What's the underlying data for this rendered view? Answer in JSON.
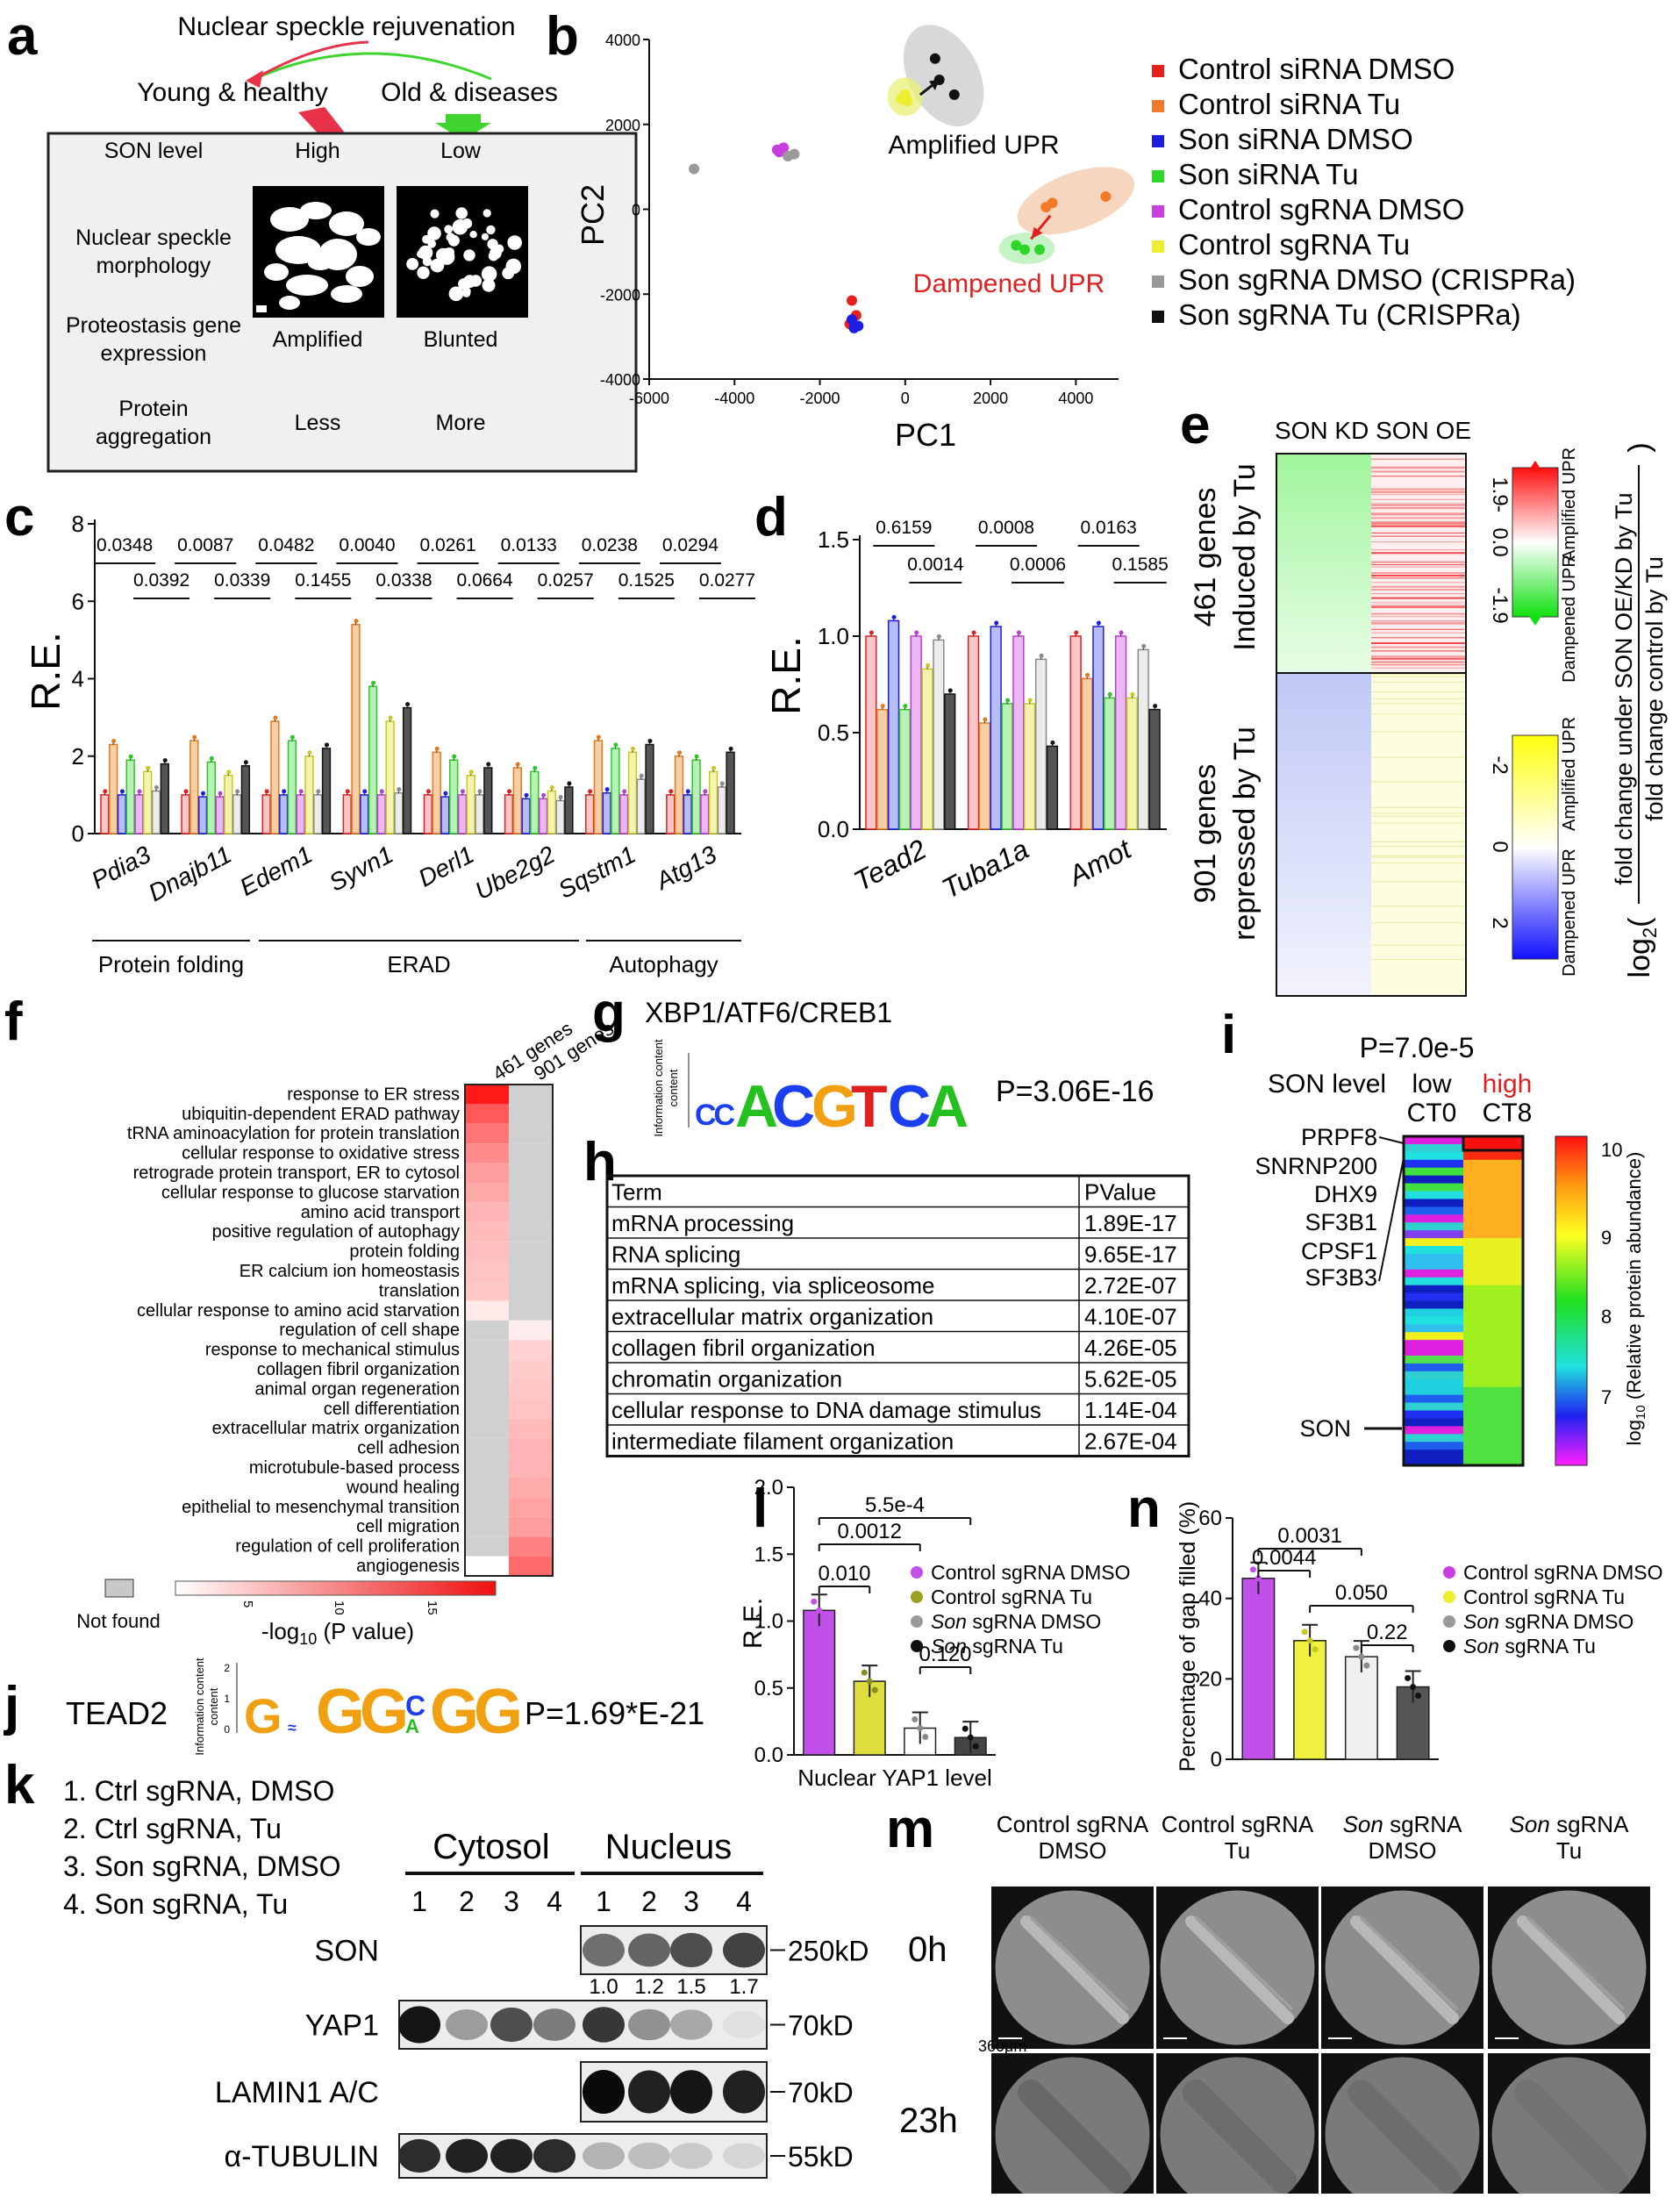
{
  "panel_letters": [
    "a",
    "b",
    "c",
    "d",
    "e",
    "f",
    "g",
    "h",
    "i",
    "j",
    "k",
    "l",
    "m",
    "n"
  ],
  "panel_a": {
    "title": "Nuclear speckle rejuvenation",
    "left_state": "Young & healthy",
    "right_state": "Old & diseases",
    "rows": [
      {
        "label": [
          "SON level"
        ],
        "left": "High",
        "right": "Low"
      },
      {
        "label": [
          "Nuclear speckle",
          "morphology"
        ],
        "left": "",
        "right": ""
      },
      {
        "label": [
          "Proteostasis gene",
          "expression"
        ],
        "left": "Amplified",
        "right": "Blunted"
      },
      {
        "label": [
          "Protein",
          "aggregation"
        ],
        "left": "Less",
        "right": "More"
      }
    ],
    "colors": {
      "arrow_left": "#e8324a",
      "arrow_right": "#3fd430"
    }
  },
  "panel_b": {
    "xlabel": "PC1",
    "ylabel": "PC2",
    "xticks": [
      "-6000",
      "-4000",
      "-2000",
      "0",
      "2000",
      "4000"
    ],
    "yticks": [
      "4000",
      "2000",
      "0",
      "-2000",
      "-4000"
    ],
    "annotation_up": "Amplified UPR",
    "annotation_down": "Dampened UPR",
    "legend": [
      {
        "name": "Control siRNA DMSO",
        "color": "#e8201c"
      },
      {
        "name": "Control siRNA Tu",
        "color": "#f07a2a"
      },
      {
        "name": "Son siRNA DMSO",
        "color": "#1b1ee0"
      },
      {
        "name": "Son siRNA Tu",
        "color": "#2fd62a"
      },
      {
        "name": "Control sgRNA DMSO",
        "color": "#c83ee0"
      },
      {
        "name": "Control sgRNA Tu",
        "color": "#eeee30"
      },
      {
        "name": "Son sgRNA DMSO (CRISPRa)",
        "color": "#9a9a9a"
      },
      {
        "name": "Son sgRNA Tu (CRISPRa)",
        "color": "#111111"
      }
    ]
  },
  "panel_c": {
    "ylabel": "R.E.",
    "yticks": [
      "0",
      "2",
      "4",
      "6",
      "8"
    ],
    "genes": [
      "Pdia3",
      "Dnajb11",
      "Edem1",
      "Syvn1",
      "Derl1",
      "Ube2g2",
      "Sqstm1",
      "Atg13"
    ],
    "pvalues_top": [
      "0.0348",
      "0.0087",
      "0.0482",
      "0.0040",
      "0.0261",
      "0.0133",
      "0.0238",
      "0.0294"
    ],
    "pvalues_bottom": [
      "0.0392",
      "0.0339",
      "0.1455",
      "0.0338",
      "0.0664",
      "0.0257",
      "0.1525",
      "0.0277"
    ],
    "groups": [
      "Protein folding",
      "ERAD",
      "Autophagy"
    ]
  },
  "panel_d": {
    "ylabel": "R.E.",
    "yticks": [
      "0.0",
      "0.5",
      "1.0",
      "1.5"
    ],
    "genes": [
      "Tead2",
      "Tuba1a",
      "Amot"
    ],
    "pvalues_top": [
      "0.6159",
      "0.0008",
      "0.0163"
    ],
    "pvalues_bottom": [
      "0.0014",
      "0.0006",
      "0.1585"
    ]
  },
  "panel_e": {
    "col_labels": "SON KD SON OE",
    "row_top": [
      "461 genes",
      "Induced by Tu"
    ],
    "row_bottom": [
      "901 genes",
      "repressed by Tu"
    ],
    "scale1_ticks": [
      "1.9",
      "-",
      "0.0",
      "-1.9"
    ],
    "scale2_ticks": [
      "-2",
      "0",
      "2"
    ],
    "scale_up": "Amplified UPR",
    "scale_down": "Dampened UPR",
    "axis_label": "log2(fold change under SON OE/KD by Tu / fold change control by Tu)",
    "axis_num": "fold change under SON OE/KD by Tu",
    "axis_den": "fold change control by Tu"
  },
  "panel_f": {
    "columns": [
      "461 genes",
      "901 genes"
    ],
    "terms": [
      {
        "term": "response to ER stress",
        "a": 1.0,
        "b": 0.0
      },
      {
        "term": "ubiquitin-dependent ERAD pathway",
        "a": 0.72,
        "b": 0.0
      },
      {
        "term": "tRNA aminoacylation for protein translation",
        "a": 0.6,
        "b": 0.0
      },
      {
        "term": "cellular response to oxidative stress",
        "a": 0.5,
        "b": 0.0
      },
      {
        "term": "retrograde protein transport, ER to cytosol",
        "a": 0.42,
        "b": 0.0
      },
      {
        "term": "cellular response to glucose starvation",
        "a": 0.38,
        "b": 0.0
      },
      {
        "term": "amino acid transport",
        "a": 0.32,
        "b": 0.0
      },
      {
        "term": "positive regulation of autophagy",
        "a": 0.3,
        "b": 0.0
      },
      {
        "term": "protein folding",
        "a": 0.28,
        "b": 0.0
      },
      {
        "term": "ER calcium ion homeostasis",
        "a": 0.26,
        "b": 0.0
      },
      {
        "term": "translation",
        "a": 0.24,
        "b": 0.0
      },
      {
        "term": "cellular response to amino acid starvation",
        "a": 0.1,
        "b": 0.0
      },
      {
        "term": "regulation of cell shape",
        "a": 0.0,
        "b": 0.08
      },
      {
        "term": "response to mechanical stimulus",
        "a": 0.0,
        "b": 0.2
      },
      {
        "term": "collagen fibril organization",
        "a": 0.0,
        "b": 0.22
      },
      {
        "term": "animal organ regeneration",
        "a": 0.0,
        "b": 0.24
      },
      {
        "term": "cell differentiation",
        "a": 0.0,
        "b": 0.26
      },
      {
        "term": "extracellular matrix organization",
        "a": 0.0,
        "b": 0.3
      },
      {
        "term": "cell adhesion",
        "a": 0.0,
        "b": 0.32
      },
      {
        "term": "microtubule-based process",
        "a": 0.0,
        "b": 0.32
      },
      {
        "term": "wound healing",
        "a": 0.0,
        "b": 0.36
      },
      {
        "term": "epithelial to mesenchymal transition",
        "a": 0.0,
        "b": 0.4
      },
      {
        "term": "cell migration",
        "a": 0.0,
        "b": 0.42
      },
      {
        "term": "regulation of cell proliferation",
        "a": 0.0,
        "b": 0.55
      },
      {
        "term": "angiogenesis",
        "a": -1,
        "b": 0.65
      }
    ],
    "not_found": "Not found",
    "scale_ticks": [
      "5",
      "10",
      "15"
    ],
    "scale_label": "-log10 (P value)"
  },
  "panel_g": {
    "title": "XBP1/ATF6/CREB1",
    "motif": "CCACGTCA",
    "ylabel": "Information content",
    "pvalue": "P=3.06E-16"
  },
  "panel_h": {
    "header": [
      "Term",
      "PValue"
    ],
    "rows": [
      [
        "mRNA processing",
        "1.89E-17"
      ],
      [
        "RNA splicing",
        "9.65E-17"
      ],
      [
        "mRNA splicing, via spliceosome",
        "2.72E-07"
      ],
      [
        "extracellular matrix organization",
        "4.10E-07"
      ],
      [
        "collagen fibril organization",
        "4.26E-05"
      ],
      [
        "chromatin organization",
        "5.62E-05"
      ],
      [
        "cellular response to DNA damage stimulus",
        "1.14E-04"
      ],
      [
        "intermediate filament organization",
        "2.67E-04"
      ]
    ]
  },
  "panel_i": {
    "pvalue": "P=7.0e-5",
    "son_level": "SON level",
    "low": "low",
    "high": "high",
    "ct0": "CT0",
    "ct8": "CT8",
    "proteins": [
      "PRPF8",
      "SNRNP200",
      "DHX9",
      "SF3B1",
      "CPSF1",
      "SF3B3"
    ],
    "son": "SON",
    "scale_ticks": [
      "10",
      "9",
      "8",
      "7"
    ],
    "scale_label": "log10 (Relative protein abundance)"
  },
  "panel_j": {
    "name": "TEAD2",
    "motif": "GGGCGG",
    "ylabel": "Information content",
    "pvalue": "P=1.69*E-21"
  },
  "panel_k": {
    "conditions": [
      "1. Ctrl sgRNA, DMSO",
      "2. Ctrl sgRNA, Tu",
      "3. Son sgRNA, DMSO",
      "4. Son sgRNA, Tu"
    ],
    "cytosol": "Cytosol",
    "nucleus": "Nucleus",
    "lanes": [
      "1",
      "2",
      "3",
      "4"
    ],
    "rows": [
      {
        "label": "SON",
        "kd": "250kD"
      },
      {
        "label": "YAP1",
        "kd": "70kD"
      },
      {
        "label": "LAMIN1 A/C",
        "kd": "70kD"
      },
      {
        "label": "α-TUBULIN",
        "kd": "55kD"
      }
    ],
    "son_quant": [
      "1.0",
      "1.2",
      "1.5",
      "1.7"
    ]
  },
  "panel_l": {
    "ylabel": "R.E.",
    "xlabel": "Nuclear YAP1 level",
    "yticks": [
      "0.0",
      "0.5",
      "1.0",
      "1.5",
      "2.0"
    ],
    "pvalues": [
      "5.5e-4",
      "0.0012",
      "0.010",
      "0.120"
    ],
    "legend": [
      {
        "name": "Control sgRNA DMSO",
        "color": "#c050e8"
      },
      {
        "name": "Control sgRNA Tu",
        "color": "#9aa020"
      },
      {
        "name": "Son sgRNA DMSO",
        "color": "#9a9a9a"
      },
      {
        "name": "Son sgRNA Tu",
        "color": "#111111"
      }
    ]
  },
  "panel_m": {
    "columns": [
      [
        "Control sgRNA",
        "DMSO"
      ],
      [
        "Control sgRNA",
        "Tu"
      ],
      [
        "Son sgRNA",
        "DMSO"
      ],
      [
        "Son sgRNA",
        "Tu"
      ]
    ],
    "rows": [
      "0h",
      "23h"
    ],
    "scale": "360μm"
  },
  "panel_n": {
    "ylabel": "Percentage of gap filled (%)",
    "yticks": [
      "0",
      "20",
      "40",
      "60"
    ],
    "pvalues": [
      "0.0031",
      "0.0044",
      "0.050",
      "0.22"
    ],
    "legend": [
      {
        "name": "Control sgRNA DMSO",
        "color": "#c83ee0"
      },
      {
        "name": "Control sgRNA Tu",
        "color": "#eeee30"
      },
      {
        "name": "Son sgRNA DMSO",
        "color": "#9a9a9a"
      },
      {
        "name": "Son sgRNA Tu",
        "color": "#111111"
      }
    ]
  },
  "chart_data": [
    {
      "type": "scatter",
      "xlabel": "PC1",
      "ylabel": "PC2",
      "xlim": [
        -6000,
        5000
      ],
      "ylim": [
        -4000,
        4000
      ],
      "series": [
        {
          "name": "Control siRNA DMSO",
          "points": [
            [
              -1250,
              -2150
            ],
            [
              -1150,
              -2500
            ],
            [
              -1300,
              -2700
            ]
          ]
        },
        {
          "name": "Control siRNA Tu",
          "points": [
            [
              3300,
              50
            ],
            [
              3450,
              150
            ],
            [
              4700,
              300
            ]
          ]
        },
        {
          "name": "Son siRNA DMSO",
          "points": [
            [
              -1250,
              -2600
            ],
            [
              -1100,
              -2750
            ],
            [
              -1200,
              -2800
            ]
          ]
        },
        {
          "name": "Son siRNA Tu",
          "points": [
            [
              2600,
              -850
            ],
            [
              2800,
              -950
            ],
            [
              3150,
              -950
            ]
          ]
        },
        {
          "name": "Control sgRNA DMSO",
          "points": [
            [
              -3000,
              1400
            ],
            [
              -2850,
              1450
            ],
            [
              -2950,
              1350
            ]
          ]
        },
        {
          "name": "Control sgRNA Tu",
          "points": [
            [
              -100,
              2600
            ],
            [
              0,
              2700
            ],
            [
              50,
              2550
            ]
          ]
        },
        {
          "name": "Son sgRNA DMSO (CRISPRa)",
          "points": [
            [
              -4950,
              950
            ],
            [
              -2750,
              1250
            ],
            [
              -2600,
              1300
            ]
          ]
        },
        {
          "name": "Son sgRNA Tu (CRISPRa)",
          "points": [
            [
              700,
              3550
            ],
            [
              800,
              3050
            ],
            [
              1150,
              2700
            ]
          ]
        }
      ]
    },
    {
      "type": "bar",
      "ylabel": "R.E.",
      "ylim": [
        0,
        8
      ],
      "categories": [
        "Pdia3",
        "Dnajb11",
        "Edem1",
        "Syvn1",
        "Derl1",
        "Ube2g2",
        "Sqstm1",
        "Atg13"
      ],
      "series": [
        {
          "name": "Control siRNA DMSO",
          "values": [
            1.0,
            1.0,
            1.0,
            1.0,
            1.0,
            1.0,
            1.0,
            1.0
          ]
        },
        {
          "name": "Control siRNA Tu",
          "values": [
            2.3,
            2.4,
            2.9,
            5.4,
            2.1,
            1.7,
            2.4,
            2.0
          ]
        },
        {
          "name": "Son siRNA DMSO",
          "values": [
            1.0,
            0.95,
            1.0,
            1.0,
            0.95,
            0.9,
            1.05,
            1.0
          ]
        },
        {
          "name": "Son siRNA Tu",
          "values": [
            1.9,
            1.85,
            2.4,
            3.8,
            1.9,
            1.6,
            2.2,
            1.9
          ]
        },
        {
          "name": "Control sgRNA DMSO",
          "values": [
            1.0,
            0.95,
            1.0,
            1.0,
            1.0,
            0.9,
            1.0,
            1.0
          ]
        },
        {
          "name": "Control sgRNA Tu",
          "values": [
            1.6,
            1.5,
            2.0,
            2.9,
            1.5,
            1.1,
            2.1,
            1.6
          ]
        },
        {
          "name": "Son sgRNA DMSO",
          "values": [
            1.1,
            1.0,
            1.0,
            1.05,
            1.0,
            0.85,
            1.4,
            1.2
          ]
        },
        {
          "name": "Son sgRNA Tu",
          "values": [
            1.8,
            1.75,
            2.2,
            3.25,
            1.7,
            1.2,
            2.3,
            2.1
          ]
        }
      ]
    },
    {
      "type": "bar",
      "ylabel": "R.E.",
      "ylim": [
        0,
        1.5
      ],
      "categories": [
        "Tead2",
        "Tuba1a",
        "Amot"
      ],
      "series": [
        {
          "name": "Control siRNA DMSO",
          "values": [
            1.0,
            1.0,
            1.0
          ]
        },
        {
          "name": "Control siRNA Tu",
          "values": [
            0.62,
            0.55,
            0.78
          ]
        },
        {
          "name": "Son siRNA DMSO",
          "values": [
            1.08,
            1.05,
            1.05
          ]
        },
        {
          "name": "Son siRNA Tu",
          "values": [
            0.62,
            0.65,
            0.68
          ]
        },
        {
          "name": "Control sgRNA DMSO",
          "values": [
            1.0,
            1.0,
            1.0
          ]
        },
        {
          "name": "Control sgRNA Tu",
          "values": [
            0.83,
            0.65,
            0.68
          ]
        },
        {
          "name": "Son sgRNA DMSO",
          "values": [
            0.98,
            0.88,
            0.93
          ]
        },
        {
          "name": "Son sgRNA Tu",
          "values": [
            0.7,
            0.43,
            0.62
          ]
        }
      ]
    },
    {
      "type": "bar",
      "ylabel": "R.E.",
      "xlabel": "Nuclear YAP1 level",
      "ylim": [
        0,
        2.0
      ],
      "categories": [
        "Control sgRNA DMSO",
        "Control sgRNA Tu",
        "Son sgRNA DMSO",
        "Son sgRNA Tu"
      ],
      "values": [
        1.08,
        0.55,
        0.2,
        0.13
      ]
    },
    {
      "type": "bar",
      "ylabel": "Percentage of gap filled (%)",
      "ylim": [
        0,
        60
      ],
      "categories": [
        "Control sgRNA DMSO",
        "Control sgRNA Tu",
        "Son sgRNA DMSO",
        "Son sgRNA Tu"
      ],
      "values": [
        45,
        29.5,
        25.5,
        18
      ]
    }
  ]
}
